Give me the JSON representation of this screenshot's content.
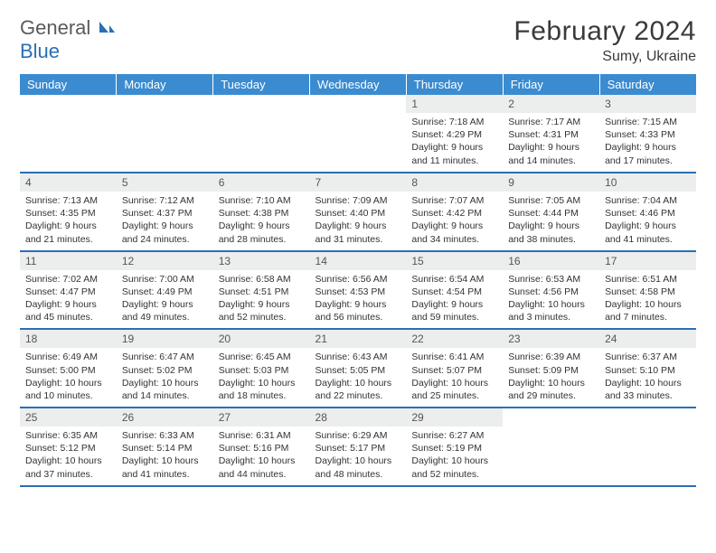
{
  "brand": {
    "part1": "General",
    "part2": "Blue"
  },
  "title": "February 2024",
  "subtitle": "Sumy, Ukraine",
  "colors": {
    "header_bg": "#3b8bd0",
    "header_text": "#ffffff",
    "rule": "#2a6fb5",
    "daynum_bg": "#eceded",
    "text": "#333333",
    "logo_gray": "#5a5a5a",
    "logo_blue": "#2a6fb5"
  },
  "weekdays": [
    "Sunday",
    "Monday",
    "Tuesday",
    "Wednesday",
    "Thursday",
    "Friday",
    "Saturday"
  ],
  "weeks": [
    [
      null,
      null,
      null,
      null,
      {
        "n": "1",
        "sr": "7:18 AM",
        "ss": "4:29 PM",
        "dl": "9 hours and 11 minutes."
      },
      {
        "n": "2",
        "sr": "7:17 AM",
        "ss": "4:31 PM",
        "dl": "9 hours and 14 minutes."
      },
      {
        "n": "3",
        "sr": "7:15 AM",
        "ss": "4:33 PM",
        "dl": "9 hours and 17 minutes."
      }
    ],
    [
      {
        "n": "4",
        "sr": "7:13 AM",
        "ss": "4:35 PM",
        "dl": "9 hours and 21 minutes."
      },
      {
        "n": "5",
        "sr": "7:12 AM",
        "ss": "4:37 PM",
        "dl": "9 hours and 24 minutes."
      },
      {
        "n": "6",
        "sr": "7:10 AM",
        "ss": "4:38 PM",
        "dl": "9 hours and 28 minutes."
      },
      {
        "n": "7",
        "sr": "7:09 AM",
        "ss": "4:40 PM",
        "dl": "9 hours and 31 minutes."
      },
      {
        "n": "8",
        "sr": "7:07 AM",
        "ss": "4:42 PM",
        "dl": "9 hours and 34 minutes."
      },
      {
        "n": "9",
        "sr": "7:05 AM",
        "ss": "4:44 PM",
        "dl": "9 hours and 38 minutes."
      },
      {
        "n": "10",
        "sr": "7:04 AM",
        "ss": "4:46 PM",
        "dl": "9 hours and 41 minutes."
      }
    ],
    [
      {
        "n": "11",
        "sr": "7:02 AM",
        "ss": "4:47 PM",
        "dl": "9 hours and 45 minutes."
      },
      {
        "n": "12",
        "sr": "7:00 AM",
        "ss": "4:49 PM",
        "dl": "9 hours and 49 minutes."
      },
      {
        "n": "13",
        "sr": "6:58 AM",
        "ss": "4:51 PM",
        "dl": "9 hours and 52 minutes."
      },
      {
        "n": "14",
        "sr": "6:56 AM",
        "ss": "4:53 PM",
        "dl": "9 hours and 56 minutes."
      },
      {
        "n": "15",
        "sr": "6:54 AM",
        "ss": "4:54 PM",
        "dl": "9 hours and 59 minutes."
      },
      {
        "n": "16",
        "sr": "6:53 AM",
        "ss": "4:56 PM",
        "dl": "10 hours and 3 minutes."
      },
      {
        "n": "17",
        "sr": "6:51 AM",
        "ss": "4:58 PM",
        "dl": "10 hours and 7 minutes."
      }
    ],
    [
      {
        "n": "18",
        "sr": "6:49 AM",
        "ss": "5:00 PM",
        "dl": "10 hours and 10 minutes."
      },
      {
        "n": "19",
        "sr": "6:47 AM",
        "ss": "5:02 PM",
        "dl": "10 hours and 14 minutes."
      },
      {
        "n": "20",
        "sr": "6:45 AM",
        "ss": "5:03 PM",
        "dl": "10 hours and 18 minutes."
      },
      {
        "n": "21",
        "sr": "6:43 AM",
        "ss": "5:05 PM",
        "dl": "10 hours and 22 minutes."
      },
      {
        "n": "22",
        "sr": "6:41 AM",
        "ss": "5:07 PM",
        "dl": "10 hours and 25 minutes."
      },
      {
        "n": "23",
        "sr": "6:39 AM",
        "ss": "5:09 PM",
        "dl": "10 hours and 29 minutes."
      },
      {
        "n": "24",
        "sr": "6:37 AM",
        "ss": "5:10 PM",
        "dl": "10 hours and 33 minutes."
      }
    ],
    [
      {
        "n": "25",
        "sr": "6:35 AM",
        "ss": "5:12 PM",
        "dl": "10 hours and 37 minutes."
      },
      {
        "n": "26",
        "sr": "6:33 AM",
        "ss": "5:14 PM",
        "dl": "10 hours and 41 minutes."
      },
      {
        "n": "27",
        "sr": "6:31 AM",
        "ss": "5:16 PM",
        "dl": "10 hours and 44 minutes."
      },
      {
        "n": "28",
        "sr": "6:29 AM",
        "ss": "5:17 PM",
        "dl": "10 hours and 48 minutes."
      },
      {
        "n": "29",
        "sr": "6:27 AM",
        "ss": "5:19 PM",
        "dl": "10 hours and 52 minutes."
      },
      null,
      null
    ]
  ],
  "labels": {
    "sunrise": "Sunrise:",
    "sunset": "Sunset:",
    "daylight": "Daylight:"
  }
}
